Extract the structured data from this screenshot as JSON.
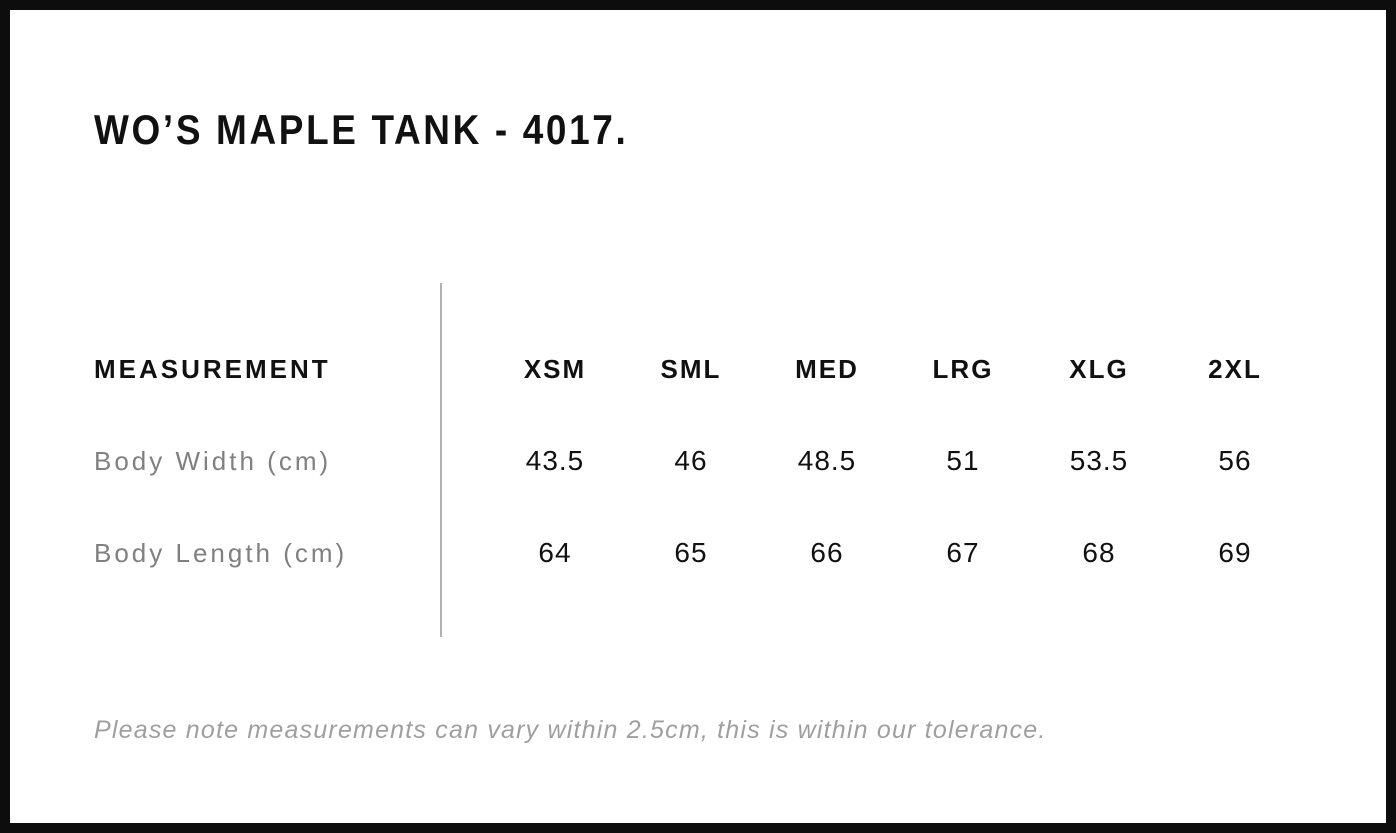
{
  "page": {
    "title": "WO’S MAPLE TANK - 4017.",
    "footer_note": "Please note measurements can vary within 2.5cm, this is within our tolerance."
  },
  "size_chart": {
    "measurement_header": "MEASUREMENT",
    "size_headers": [
      "XSM",
      "SML",
      "MED",
      "LRG",
      "XLG",
      "2XL"
    ],
    "rows": [
      {
        "label": "Body Width (cm)",
        "values": [
          "43.5",
          "46",
          "48.5",
          "51",
          "53.5",
          "56"
        ]
      },
      {
        "label": "Body Length (cm)",
        "values": [
          "64",
          "65",
          "66",
          "67",
          "68",
          "69"
        ]
      }
    ]
  },
  "chart_data": {
    "type": "table",
    "title": "WO’S MAPLE TANK - 4017.",
    "columns": [
      "MEASUREMENT",
      "XSM",
      "SML",
      "MED",
      "LRG",
      "XLG",
      "2XL"
    ],
    "rows": [
      [
        "Body Width (cm)",
        43.5,
        46,
        48.5,
        51,
        53.5,
        56
      ],
      [
        "Body Length (cm)",
        64,
        65,
        66,
        67,
        68,
        69
      ]
    ],
    "note": "Please note measurements can vary within 2.5cm, this is within our tolerance."
  },
  "colors": {
    "frame_border": "#0d0d0d",
    "heading_text": "#111111",
    "row_label_text": "#808080",
    "note_text": "#9f9f9f",
    "divider": "#b2b2b2",
    "background": "#ffffff"
  }
}
